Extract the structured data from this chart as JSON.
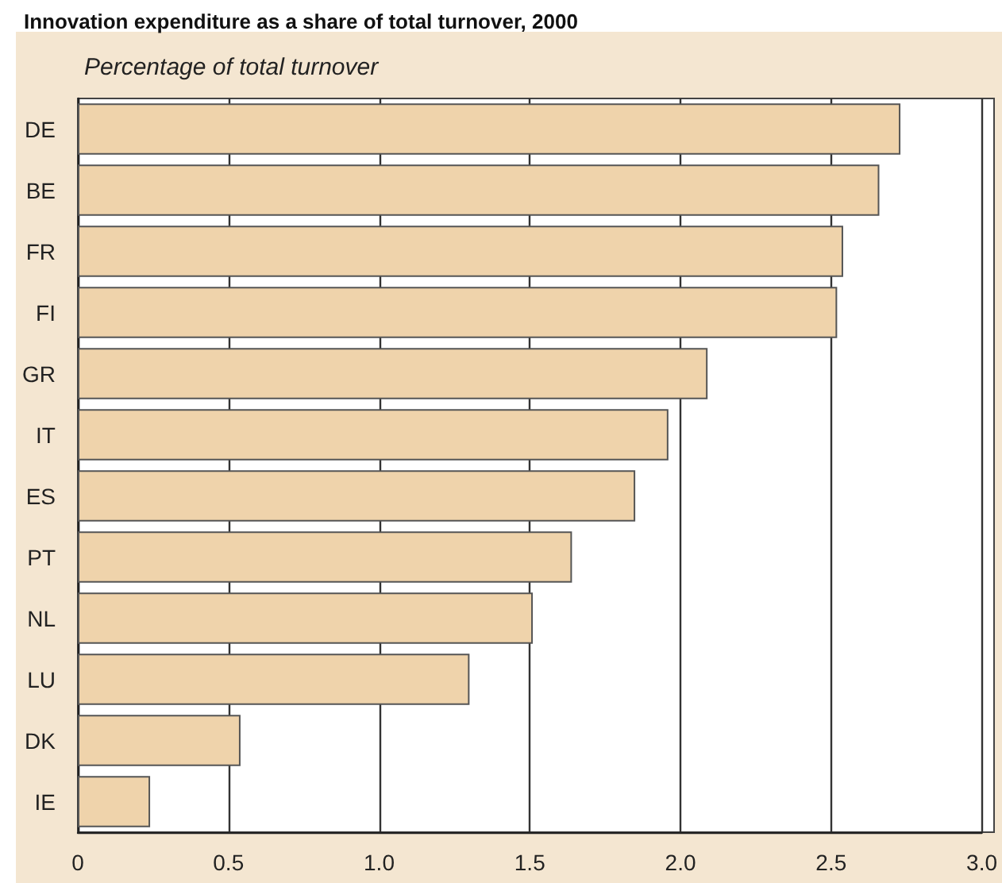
{
  "chart_data": {
    "type": "bar",
    "orientation": "horizontal",
    "title": "Innovation expenditure as a share of total turnover, 2000",
    "subtitle": "Percentage of total turnover",
    "categories": [
      "DE",
      "BE",
      "FR",
      "FI",
      "GR",
      "IT",
      "ES",
      "PT",
      "NL",
      "LU",
      "DK",
      "IE"
    ],
    "values": [
      2.73,
      2.66,
      2.54,
      2.52,
      2.09,
      1.96,
      1.85,
      1.64,
      1.51,
      1.3,
      0.54,
      0.24
    ],
    "color": "#efd3ab",
    "xlim": [
      0,
      3
    ],
    "xticks": [
      0,
      0.5,
      {
        "value": 1,
        "label": "1.0"
      },
      1.5,
      {
        "value": 2,
        "label": "2.0"
      },
      2.5,
      {
        "value": 3,
        "label": "3.0"
      }
    ],
    "grid": "x"
  }
}
